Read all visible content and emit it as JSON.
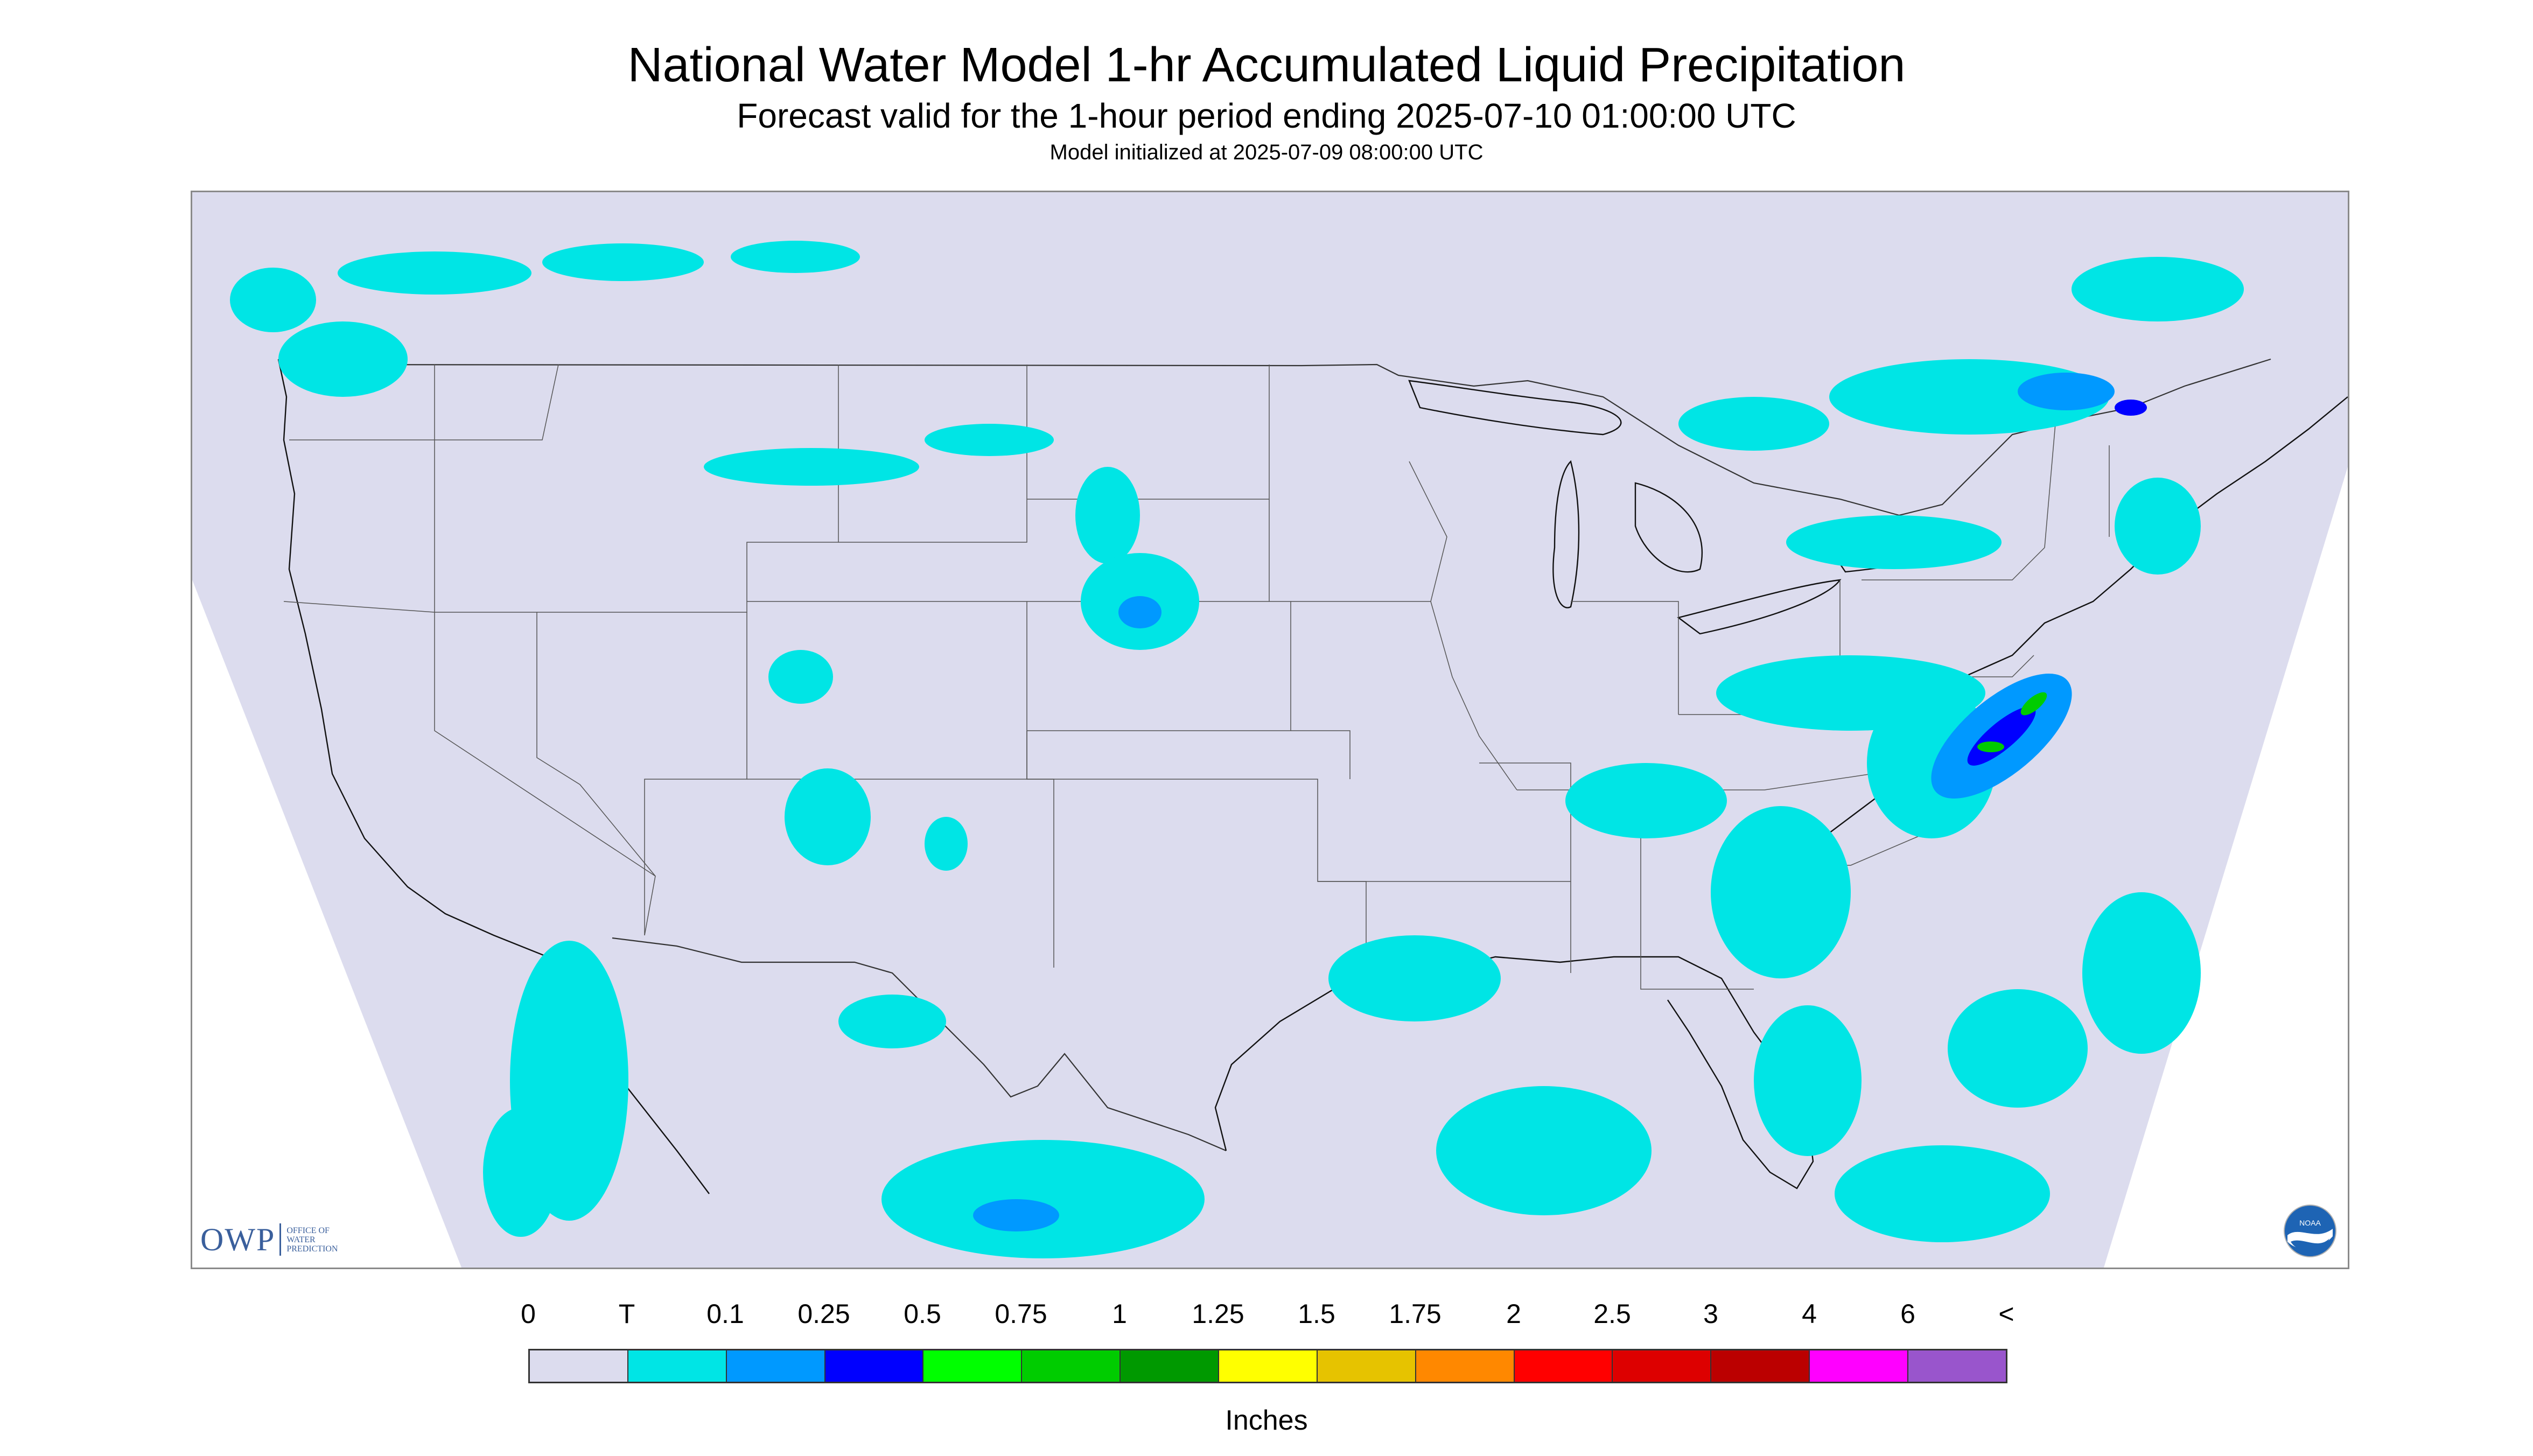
{
  "title": "National Water Model 1-hr Accumulated Liquid Precipitation",
  "subtitle": "Forecast valid for the 1-hour period ending 2025-07-10 01:00:00 UTC",
  "init_text": "Model initialized at 2025-07-09 08:00:00 UTC",
  "logo": {
    "owp_mark": "OWP",
    "owp_lines": [
      "OFFICE OF",
      "WATER",
      "PREDICTION"
    ],
    "noaa_icon": "noaa-logo-icon",
    "noaa_text": "NOAA"
  },
  "colors": {
    "background": "#dcdcee",
    "trace": "#00e5e5",
    "heavier": "#0000ff",
    "heaviest_shown": "#00cc00"
  },
  "legend": {
    "labels": [
      "0",
      "T",
      "0.1",
      "0.25",
      "0.5",
      "0.75",
      "1",
      "1.25",
      "1.5",
      "1.75",
      "2",
      "2.5",
      "3",
      "4",
      "6",
      "<"
    ],
    "colors": [
      "#dcdcee",
      "#00e5e5",
      "#0099ff",
      "#0000ff",
      "#00ff00",
      "#00cc00",
      "#009900",
      "#ffff00",
      "#e6c300",
      "#ff8800",
      "#ff0000",
      "#dd0000",
      "#bb0000",
      "#ff00ff",
      "#9955cc"
    ],
    "units": "Inches"
  }
}
